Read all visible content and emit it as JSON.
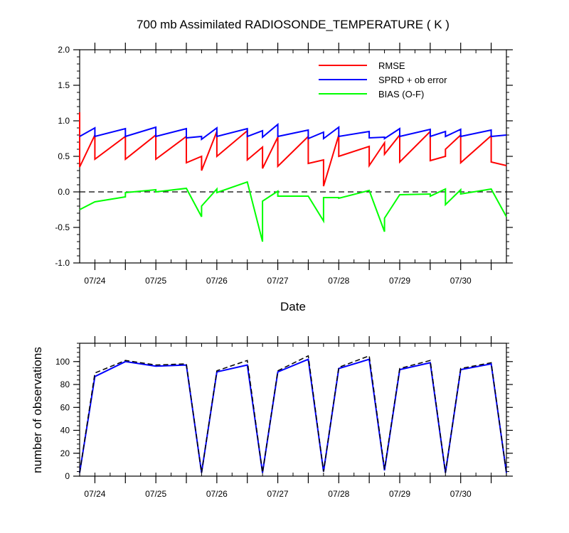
{
  "chart_data": [
    {
      "type": "line",
      "title": "700 mb Assimilated RADIOSONDE_TEMPERATURE ( K )",
      "xlabel": "Date",
      "ylabel": "",
      "ylim": [
        -1.0,
        2.0
      ],
      "xlim": [
        "2024-07-23T18:00",
        "2024-07-30T23:59"
      ],
      "xtick_labels": [
        "07/24",
        "07/25",
        "07/26",
        "07/27",
        "07/28",
        "07/29",
        "07/30"
      ],
      "ytick_labels": [
        "2.0",
        "1.5",
        "1.0",
        "0.5",
        "0.0",
        "-0.5",
        "-1.0"
      ],
      "ytick_values": [
        2.0,
        1.5,
        1.0,
        0.5,
        0.0,
        -0.5,
        -1.0
      ],
      "reference_line": {
        "y": 0.0,
        "style": "dashed"
      },
      "legend_position": "top-right",
      "series": [
        {
          "name": "RMSE",
          "color": "#ff0000",
          "points": [
            [
              0.0,
              1.12
            ],
            [
              0.0,
              0.35
            ],
            [
              0.25,
              0.8
            ],
            [
              0.25,
              0.46
            ],
            [
              0.75,
              0.78
            ],
            [
              0.75,
              0.46
            ],
            [
              1.25,
              0.8
            ],
            [
              1.25,
              0.46
            ],
            [
              1.75,
              0.78
            ],
            [
              1.75,
              0.41
            ],
            [
              2.0,
              0.5
            ],
            [
              2.0,
              0.3
            ],
            [
              2.25,
              0.85
            ],
            [
              2.25,
              0.5
            ],
            [
              2.75,
              0.86
            ],
            [
              2.75,
              0.45
            ],
            [
              3.0,
              0.63
            ],
            [
              3.0,
              0.33
            ],
            [
              3.25,
              0.77
            ],
            [
              3.25,
              0.36
            ],
            [
              3.75,
              0.78
            ],
            [
              3.75,
              0.4
            ],
            [
              4.0,
              0.45
            ],
            [
              4.0,
              0.08
            ],
            [
              4.25,
              0.8
            ],
            [
              4.25,
              0.5
            ],
            [
              4.75,
              0.64
            ],
            [
              4.75,
              0.37
            ],
            [
              5.0,
              0.69
            ],
            [
              5.0,
              0.53
            ],
            [
              5.25,
              0.8
            ],
            [
              5.25,
              0.42
            ],
            [
              5.75,
              0.85
            ],
            [
              5.75,
              0.44
            ],
            [
              6.0,
              0.5
            ],
            [
              6.0,
              0.6
            ],
            [
              6.25,
              0.8
            ],
            [
              6.25,
              0.41
            ],
            [
              6.75,
              0.79
            ],
            [
              6.75,
              0.42
            ],
            [
              7.0,
              0.37
            ]
          ]
        },
        {
          "name": "SPRD + ob error",
          "color": "#0000ff",
          "points": [
            [
              0.0,
              0.78
            ],
            [
              0.25,
              0.9
            ],
            [
              0.25,
              0.78
            ],
            [
              0.75,
              0.89
            ],
            [
              0.75,
              0.78
            ],
            [
              1.25,
              0.91
            ],
            [
              1.25,
              0.78
            ],
            [
              1.75,
              0.89
            ],
            [
              1.75,
              0.76
            ],
            [
              2.0,
              0.78
            ],
            [
              2.0,
              0.74
            ],
            [
              2.25,
              0.9
            ],
            [
              2.25,
              0.78
            ],
            [
              2.75,
              0.89
            ],
            [
              2.75,
              0.78
            ],
            [
              3.0,
              0.86
            ],
            [
              3.0,
              0.77
            ],
            [
              3.25,
              0.95
            ],
            [
              3.25,
              0.78
            ],
            [
              3.75,
              0.87
            ],
            [
              3.75,
              0.75
            ],
            [
              4.0,
              0.84
            ],
            [
              4.0,
              0.75
            ],
            [
              4.25,
              0.91
            ],
            [
              4.25,
              0.78
            ],
            [
              4.75,
              0.85
            ],
            [
              4.75,
              0.76
            ],
            [
              5.0,
              0.77
            ],
            [
              5.0,
              0.75
            ],
            [
              5.25,
              0.89
            ],
            [
              5.25,
              0.78
            ],
            [
              5.75,
              0.88
            ],
            [
              5.75,
              0.78
            ],
            [
              6.0,
              0.85
            ],
            [
              6.0,
              0.78
            ],
            [
              6.25,
              0.88
            ],
            [
              6.25,
              0.78
            ],
            [
              6.75,
              0.87
            ],
            [
              6.75,
              0.78
            ],
            [
              7.0,
              0.8
            ]
          ]
        },
        {
          "name": "BIAS (O-F)",
          "color": "#00ff00",
          "points": [
            [
              0.0,
              -0.25
            ],
            [
              0.25,
              -0.14
            ],
            [
              0.75,
              -0.07
            ],
            [
              0.75,
              -0.01
            ],
            [
              1.25,
              0.03
            ],
            [
              1.25,
              0.0
            ],
            [
              1.75,
              0.05
            ],
            [
              2.0,
              -0.35
            ],
            [
              2.0,
              -0.2
            ],
            [
              2.25,
              0.04
            ],
            [
              2.25,
              -0.01
            ],
            [
              2.75,
              0.14
            ],
            [
              3.0,
              -0.7
            ],
            [
              3.0,
              -0.13
            ],
            [
              3.25,
              0.01
            ],
            [
              3.25,
              -0.06
            ],
            [
              3.75,
              -0.06
            ],
            [
              4.0,
              -0.41
            ],
            [
              4.0,
              -0.08
            ],
            [
              4.25,
              -0.08
            ],
            [
              4.25,
              -0.09
            ],
            [
              4.75,
              0.02
            ],
            [
              5.0,
              -0.56
            ],
            [
              5.0,
              -0.37
            ],
            [
              5.25,
              -0.04
            ],
            [
              5.75,
              -0.03
            ],
            [
              5.75,
              -0.06
            ],
            [
              6.0,
              0.04
            ],
            [
              6.0,
              -0.18
            ],
            [
              6.25,
              0.03
            ],
            [
              6.25,
              -0.03
            ],
            [
              6.75,
              0.04
            ],
            [
              7.0,
              -0.35
            ]
          ]
        }
      ]
    },
    {
      "type": "line",
      "title": "",
      "xlabel": "",
      "ylabel": "number of observations",
      "ylim": [
        0,
        116
      ],
      "xtick_labels": [
        "07/24",
        "07/25",
        "07/26",
        "07/27",
        "07/28",
        "07/29",
        "07/30"
      ],
      "ytick_labels": [
        "100",
        "80",
        "60",
        "40",
        "20",
        "0"
      ],
      "ytick_values": [
        100,
        80,
        60,
        40,
        20,
        0
      ],
      "series": [
        {
          "color": "#0000ff",
          "style": "solid",
          "points": [
            [
              0.0,
              3
            ],
            [
              0.25,
              87
            ],
            [
              0.75,
              100
            ],
            [
              1.25,
              96
            ],
            [
              1.75,
              97
            ],
            [
              2.0,
              3
            ],
            [
              2.25,
              91
            ],
            [
              2.75,
              97
            ],
            [
              3.0,
              3
            ],
            [
              3.25,
              91
            ],
            [
              3.75,
              102
            ],
            [
              4.0,
              4
            ],
            [
              4.25,
              94
            ],
            [
              4.75,
              102
            ],
            [
              5.0,
              5
            ],
            [
              5.25,
              93
            ],
            [
              5.75,
              99
            ],
            [
              6.0,
              3
            ],
            [
              6.25,
              93
            ],
            [
              6.75,
              98
            ],
            [
              7.0,
              3
            ]
          ]
        },
        {
          "color": "#000000",
          "style": "dashed",
          "points": [
            [
              0.0,
              3
            ],
            [
              0.25,
              90
            ],
            [
              0.75,
              101
            ],
            [
              1.25,
              97
            ],
            [
              1.75,
              98
            ],
            [
              2.0,
              3
            ],
            [
              2.25,
              92
            ],
            [
              2.75,
              101
            ],
            [
              3.0,
              3
            ],
            [
              3.25,
              92
            ],
            [
              3.75,
              105
            ],
            [
              4.0,
              4
            ],
            [
              4.25,
              95
            ],
            [
              4.75,
              105
            ],
            [
              5.0,
              6
            ],
            [
              5.25,
              94
            ],
            [
              5.75,
              101
            ],
            [
              6.0,
              3
            ],
            [
              6.25,
              94
            ],
            [
              6.75,
              99
            ],
            [
              7.0,
              3
            ]
          ]
        }
      ]
    }
  ]
}
